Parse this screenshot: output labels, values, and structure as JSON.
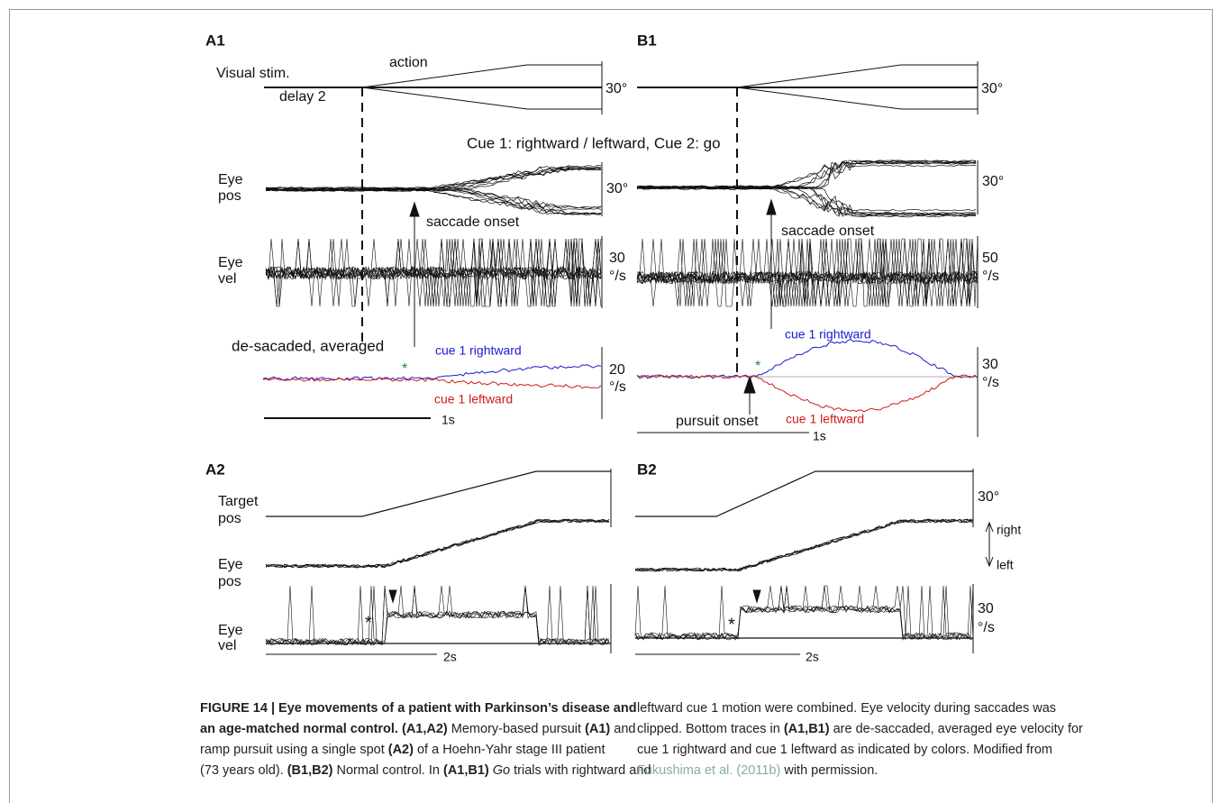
{
  "panels": {
    "a1": {
      "label": "A1",
      "visual_stim": "Visual stim.",
      "action": "action",
      "delay": "delay 2",
      "stim_scale": "30°",
      "eye_pos": [
        "Eye",
        "pos"
      ],
      "pos_scale": "30°",
      "saccade_onset": "saccade onset",
      "eye_vel": [
        "Eye",
        "vel"
      ],
      "vel_scale": [
        "30",
        "°/s"
      ],
      "averaged": "de-sacaded, averaged",
      "rightward": "cue 1 rightward",
      "leftward": "cue 1 leftward",
      "star": "*",
      "avg_scale": [
        "20",
        "°/s"
      ],
      "time": "1s"
    },
    "b1": {
      "label": "B1",
      "stim_scale": "30°",
      "cue": "Cue 1: rightward / leftward, Cue 2: go",
      "pos_scale": "30°",
      "saccade_onset": "saccade onset",
      "vel_scale": [
        "50",
        "°/s"
      ],
      "rightward": "cue 1 rightward",
      "leftward": "cue 1 leftward",
      "star": "*",
      "avg_scale": [
        "30",
        "°/s"
      ],
      "pursuit_onset": "pursuit onset",
      "time": "1s"
    },
    "a2": {
      "label": "A2",
      "target_pos": [
        "Target",
        "pos"
      ],
      "eye_pos": [
        "Eye",
        "pos"
      ],
      "eye_vel": [
        "Eye",
        "vel"
      ],
      "star": "*",
      "time": "2s"
    },
    "b2": {
      "label": "B2",
      "pos_scale": "30°",
      "right": "right",
      "left": "left",
      "star": "*",
      "vel_scale": [
        "30",
        "°/s"
      ],
      "time": "2s"
    }
  },
  "caption": {
    "left": [
      [
        {
          "text": "FIGURE 14 | Eye movements of a patient with Parkinson’s disease and",
          "style": "bold"
        }
      ],
      [
        {
          "text": "an age-matched normal control. (A1,A2)",
          "style": "bold"
        },
        {
          "text": " Memory-based pursuit ",
          "style": "normal"
        },
        {
          "text": "(A1)",
          "style": "bold"
        },
        {
          "text": " and",
          "style": "normal"
        }
      ],
      [
        {
          "text": "ramp pursuit using a single spot ",
          "style": "normal"
        },
        {
          "text": "(A2)",
          "style": "bold"
        },
        {
          "text": " of a Hoehn-Yahr stage III patient",
          "style": "normal"
        }
      ],
      [
        {
          "text": "(73 years old). ",
          "style": "normal"
        },
        {
          "text": "(B1,B2)",
          "style": "bold"
        },
        {
          "text": " Normal control. In ",
          "style": "normal"
        },
        {
          "text": "(A1,B1)",
          "style": "bold"
        },
        {
          "text": " ",
          "style": "normal"
        },
        {
          "text": "Go",
          "style": "italic"
        },
        {
          "text": " trials with rightward and",
          "style": "normal"
        }
      ]
    ],
    "right": [
      [
        {
          "text": "leftward cue 1 motion were combined. Eye velocity during saccades was",
          "style": "normal"
        }
      ],
      [
        {
          "text": "clipped. Bottom traces in ",
          "style": "normal"
        },
        {
          "text": "(A1,B1)",
          "style": "bold"
        },
        {
          "text": " are de-saccaded, averaged eye velocity for",
          "style": "normal"
        }
      ],
      [
        {
          "text": "cue 1 rightward and cue 1 leftward as indicated by colors. Modified from",
          "style": "normal"
        }
      ],
      [
        {
          "text": "Fukushima et al. (2011b)",
          "style": "link"
        },
        {
          "text": " with permission.",
          "style": "normal"
        }
      ]
    ]
  }
}
